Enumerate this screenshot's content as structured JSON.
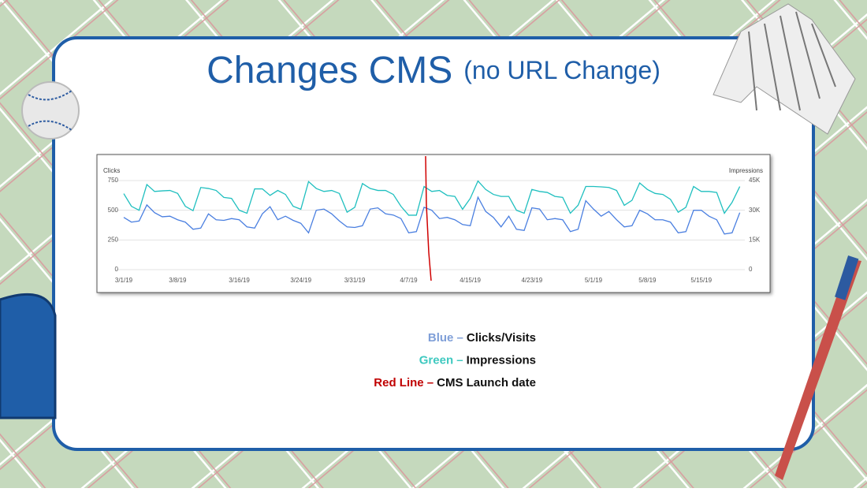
{
  "slide": {
    "title": "Changes CMS",
    "subtitle": "(no URL Change)",
    "notes": [
      {
        "label": "Blue –",
        "text": "Clicks/Visits",
        "color": "#7f9fd8"
      },
      {
        "label": "Green –",
        "text": "Impressions",
        "color": "#3fc9c0"
      },
      {
        "label": "Red Line –",
        "text": "CMS Launch date",
        "color": "#c00000"
      }
    ]
  },
  "chart_data": {
    "type": "line",
    "y_label": "Clicks",
    "y2_label": "Impressions",
    "categories": [
      "3/1/19",
      null,
      null,
      null,
      null,
      null,
      null,
      "3/8/19",
      null,
      null,
      null,
      null,
      null,
      null,
      null,
      "3/16/19",
      null,
      null,
      null,
      null,
      null,
      null,
      null,
      "3/24/19",
      null,
      null,
      null,
      null,
      null,
      null,
      "3/31/19",
      null,
      null,
      null,
      null,
      null,
      null,
      "4/7/19",
      null,
      null,
      null,
      null,
      null,
      null,
      null,
      "4/15/19",
      null,
      null,
      null,
      null,
      null,
      null,
      null,
      "4/23/19",
      null,
      null,
      null,
      null,
      null,
      null,
      null,
      "5/1/19",
      null,
      null,
      null,
      null,
      null,
      null,
      "5/8/19",
      null,
      null,
      null,
      null,
      null,
      null,
      "5/15/19",
      null,
      null,
      null,
      null,
      null
    ],
    "series": [
      {
        "name": "Clicks",
        "color": "#4a7fe0",
        "values": [
          440,
          400,
          410,
          545,
          480,
          445,
          450,
          420,
          400,
          340,
          350,
          470,
          420,
          415,
          430,
          420,
          360,
          350,
          470,
          530,
          420,
          450,
          415,
          390,
          310,
          500,
          510,
          470,
          410,
          360,
          355,
          370,
          510,
          520,
          470,
          460,
          430,
          310,
          320,
          525,
          500,
          430,
          440,
          420,
          380,
          370,
          610,
          490,
          440,
          360,
          450,
          340,
          330,
          520,
          510,
          420,
          430,
          420,
          320,
          340,
          580,
          510,
          450,
          490,
          420,
          360,
          370,
          500,
          470,
          420,
          420,
          400,
          310,
          320,
          500,
          500,
          450,
          420,
          300,
          310,
          480
        ]
      },
      {
        "name": "Impressions",
        "color": "#1fbfbf",
        "axis": "y2",
        "values": [
          38400,
          32000,
          30000,
          43000,
          39500,
          39800,
          40000,
          38500,
          32000,
          29800,
          41500,
          41000,
          40000,
          36500,
          36000,
          30000,
          28500,
          40800,
          40800,
          37500,
          40000,
          38000,
          32000,
          30500,
          44500,
          41000,
          39500,
          40000,
          38500,
          29000,
          31500,
          43500,
          41000,
          40000,
          40000,
          38000,
          32000,
          27500,
          27500,
          42000,
          39500,
          40000,
          37500,
          37000,
          30500,
          36000,
          44800,
          40500,
          38000,
          37000,
          37000,
          30000,
          28500,
          40500,
          39500,
          39000,
          37000,
          36500,
          28500,
          32500,
          42000,
          42000,
          41800,
          41500,
          40000,
          32500,
          35000,
          43800,
          40500,
          38500,
          38000,
          35500,
          29000,
          31500,
          42000,
          39500,
          39500,
          39000,
          28500,
          34000,
          42000
        ]
      }
    ],
    "ylim": [
      0,
      750
    ],
    "yticks": [
      0,
      250,
      500,
      750
    ],
    "y2lim": [
      0,
      45000
    ],
    "y2ticks": [
      0,
      {
        "value": 15000,
        "label": "15K"
      },
      {
        "value": 30000,
        "label": "30K"
      },
      {
        "value": 45000,
        "label": "45K"
      }
    ],
    "grid": true,
    "vline": {
      "x": 39.2,
      "color": "#d00000"
    }
  }
}
